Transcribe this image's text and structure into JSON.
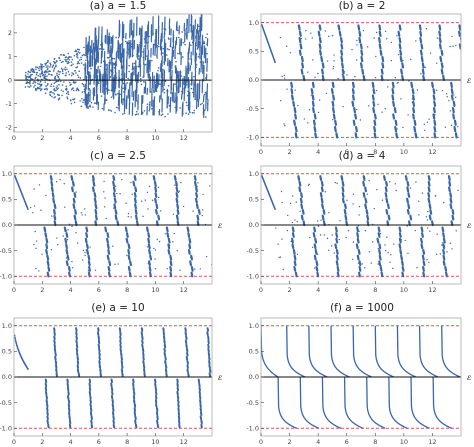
{
  "chart_data": [
    {
      "type": "scatter",
      "title": "(a) a = 1.5",
      "a": 1.5,
      "xlabel": "",
      "ylabel": "",
      "xlim": [
        0,
        14
      ],
      "ylim": [
        -2.2,
        2.8
      ],
      "xticks": [
        0,
        2,
        4,
        6,
        8,
        10,
        12
      ],
      "yticks": [
        -2,
        -1,
        0,
        1,
        2
      ],
      "hlines": [
        0
      ],
      "bounds": [],
      "style": "diffuse",
      "series": [
        {
          "x": [
            1.0,
            2.2,
            3.4,
            4.6,
            5.8,
            7.0,
            8.2,
            9.4,
            10.6,
            11.8,
            13.0
          ],
          "y_min": [
            -0.3,
            -0.6,
            -0.9,
            -1.1,
            -1.3,
            -1.4,
            -1.5,
            -1.5,
            -1.6,
            -1.6,
            -1.6
          ],
          "y_max": [
            0.4,
            0.8,
            1.1,
            1.4,
            1.6,
            1.8,
            2.0,
            2.1,
            2.2,
            2.3,
            2.4
          ]
        }
      ]
    },
    {
      "type": "scatter",
      "title": "(b) a = 2",
      "a": 2,
      "xlabel": "",
      "ylabel": "ε",
      "xlim": [
        0,
        14
      ],
      "ylim": [
        -1.15,
        1.15
      ],
      "xticks": [
        0,
        2,
        4,
        6,
        8,
        10,
        12
      ],
      "yticks": [
        -1.0,
        -0.5,
        0.0,
        0.5,
        1.0
      ],
      "ytick_labels": [
        "-1.0",
        "-0.5",
        "0.0",
        "0.5",
        "1.0"
      ],
      "hlines": [
        0
      ],
      "bounds": [
        -1,
        1
      ],
      "style": "bands",
      "series": [
        {
          "period": 1.4,
          "bands": 9
        }
      ]
    },
    {
      "type": "scatter",
      "title": "(c) a = 2.5",
      "a": 2.5,
      "xlabel": "",
      "ylabel": "ε",
      "xlim": [
        0,
        14
      ],
      "ylim": [
        -1.15,
        1.15
      ],
      "xticks": [
        0,
        2,
        4,
        6,
        8,
        10,
        12
      ],
      "yticks": [
        -1.0,
        -0.5,
        0.0,
        0.5,
        1.0
      ],
      "ytick_labels": [
        "-1.0",
        "-0.5",
        "0.0",
        "0.5",
        "1.0"
      ],
      "hlines": [
        0
      ],
      "bounds": [
        -1,
        1
      ],
      "style": "bands",
      "series": [
        {
          "period": 1.45,
          "bands": 9
        }
      ]
    },
    {
      "type": "scatter",
      "title": "(d) a = 4",
      "a": 4,
      "xlabel": "",
      "ylabel": "ε",
      "xlim": [
        0,
        14
      ],
      "ylim": [
        -1.15,
        1.15
      ],
      "xticks": [
        0,
        2,
        4,
        6,
        8,
        10,
        12
      ],
      "yticks": [
        -1.0,
        -0.5,
        0.0,
        0.5,
        1.0
      ],
      "ytick_labels": [
        "-1.0",
        "-0.5",
        "0.0",
        "0.5",
        "1.0"
      ],
      "hlines": [
        0
      ],
      "bounds": [
        -1,
        1
      ],
      "style": "bands",
      "series": [
        {
          "period": 1.5,
          "bands": 9
        }
      ]
    },
    {
      "type": "scatter",
      "title": "(e) a = 10",
      "a": 10,
      "xlabel": "",
      "ylabel": "ε",
      "xlim": [
        0,
        14
      ],
      "ylim": [
        -1.15,
        1.15
      ],
      "xticks": [
        0,
        2,
        4,
        6,
        8,
        10,
        12
      ],
      "yticks": [
        -1.0,
        -0.5,
        0.0,
        0.5,
        1.0
      ],
      "ytick_labels": [
        "-1.0",
        "-0.5",
        "0.0",
        "0.5",
        "1.0"
      ],
      "hlines": [
        0
      ],
      "bounds": [
        -1,
        1
      ],
      "style": "curves",
      "series": [
        {
          "period": 1.55,
          "bands": 9
        }
      ]
    },
    {
      "type": "line",
      "title": "(f) a = 1000",
      "a": 1000,
      "xlabel": "",
      "ylabel": "ε",
      "xlim": [
        0,
        14
      ],
      "ylim": [
        -1.15,
        1.15
      ],
      "xticks": [
        0,
        2,
        4,
        6,
        8,
        10,
        12
      ],
      "yticks": [
        -1.0,
        -0.5,
        0.0,
        0.5,
        1.0
      ],
      "ytick_labels": [
        "-1.0",
        "-0.5",
        "0.0",
        "0.5",
        "1.0"
      ],
      "hlines": [
        0
      ],
      "bounds": [
        -1,
        1
      ],
      "style": "lines",
      "series": [
        {
          "period": 1.55,
          "bands": 9
        }
      ]
    }
  ],
  "colors": {
    "points": "#3a67a8",
    "bound": "#e05555",
    "zero": "#111111",
    "frame": "#aaaaaa",
    "tick": "#444444"
  }
}
